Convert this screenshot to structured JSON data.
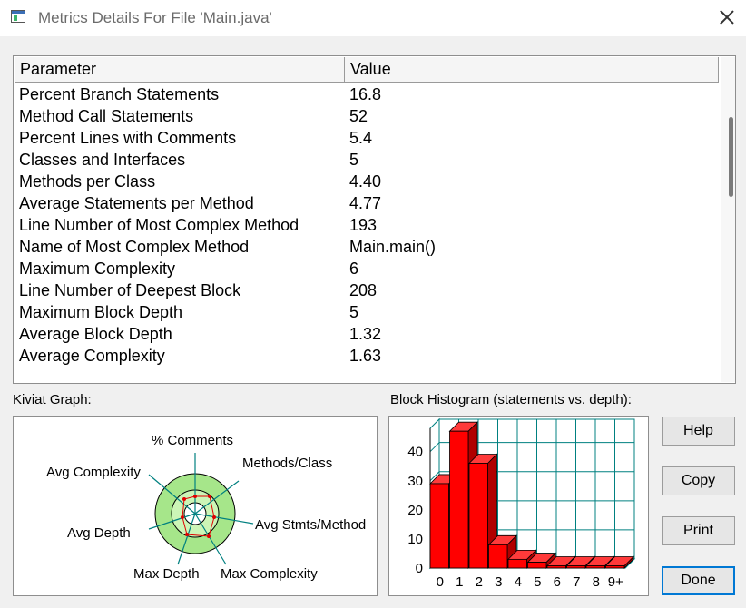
{
  "window": {
    "title": "Metrics Details For File 'Main.java'"
  },
  "table": {
    "columns": [
      "Parameter",
      "Value"
    ],
    "rows": [
      {
        "parameter": "Percent Branch Statements",
        "value": "16.8"
      },
      {
        "parameter": "Method Call Statements",
        "value": "52"
      },
      {
        "parameter": "Percent Lines with Comments",
        "value": "5.4"
      },
      {
        "parameter": "Classes and Interfaces",
        "value": "5"
      },
      {
        "parameter": "Methods per Class",
        "value": "4.40"
      },
      {
        "parameter": "Average Statements per Method",
        "value": "4.77"
      },
      {
        "parameter": "Line Number of Most Complex Method",
        "value": "193"
      },
      {
        "parameter": "Name of Most Complex Method",
        "value": "Main.main()"
      },
      {
        "parameter": "Maximum Complexity",
        "value": "6"
      },
      {
        "parameter": "Line Number of Deepest Block",
        "value": "208"
      },
      {
        "parameter": "Maximum Block Depth",
        "value": "5"
      },
      {
        "parameter": "Average Block Depth",
        "value": "1.32"
      },
      {
        "parameter": "Average Complexity",
        "value": "1.63"
      }
    ]
  },
  "kiviat": {
    "label": "Kiviat Graph:",
    "axes": [
      "% Comments",
      "Methods/Class",
      "Avg Stmts/Method",
      "Max Complexity",
      "Max Depth",
      "Avg Depth",
      "Avg Complexity"
    ],
    "colors": {
      "ring_outer": "#a6e68a",
      "ring_inner": "#ccf5b6",
      "spoke": "#008080",
      "polygon": "#e00000"
    }
  },
  "histogram": {
    "label": "Block Histogram (statements vs. depth):",
    "chart_data": {
      "type": "bar",
      "categories": [
        "0",
        "1",
        "2",
        "3",
        "4",
        "5",
        "6",
        "7",
        "8",
        "9+"
      ],
      "values": [
        29,
        47,
        36,
        8,
        3,
        2,
        0,
        0,
        0,
        0
      ],
      "yticks": [
        "0",
        "10",
        "20",
        "30",
        "40"
      ],
      "ylim": [
        0,
        48
      ],
      "bar_color": "#ff0000",
      "grid_color": "#008080"
    }
  },
  "buttons": {
    "help": "Help",
    "copy": "Copy",
    "print": "Print",
    "done": "Done"
  }
}
